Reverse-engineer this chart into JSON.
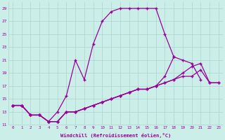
{
  "xlabel": "Windchill (Refroidissement éolien,°C)",
  "background_color": "#cceee8",
  "line_color": "#990099",
  "grid_color": "#aad4cc",
  "xlim": [
    -0.5,
    23.5
  ],
  "ylim": [
    11,
    30
  ],
  "xticks": [
    0,
    1,
    2,
    3,
    4,
    5,
    6,
    7,
    8,
    9,
    10,
    11,
    12,
    13,
    14,
    15,
    16,
    17,
    18,
    19,
    20,
    21,
    22,
    23
  ],
  "yticks": [
    11,
    13,
    15,
    17,
    19,
    21,
    23,
    25,
    27,
    29
  ],
  "series": [
    {
      "x": [
        0,
        1,
        2,
        3,
        4,
        5,
        6,
        7,
        8,
        9,
        10,
        11,
        12,
        13,
        14,
        15,
        16,
        17,
        18
      ],
      "y": [
        14,
        14,
        12.5,
        12.5,
        11.5,
        13,
        15.5,
        21,
        18,
        23.5,
        27,
        28.5,
        29,
        29,
        29,
        29,
        29,
        25,
        21.5
      ]
    },
    {
      "x": [
        0,
        1,
        2,
        3,
        4,
        5,
        6,
        7,
        8,
        9,
        10,
        11,
        12,
        13,
        14,
        15,
        16,
        17,
        18,
        19,
        20,
        21,
        22,
        23
      ],
      "y": [
        14,
        14,
        12.5,
        12.5,
        11.5,
        11.5,
        13,
        13,
        13.5,
        14,
        14.5,
        15,
        15.5,
        16,
        16.5,
        16.5,
        17,
        17.5,
        18,
        18.5,
        18.5,
        19.5,
        17.5,
        17.5
      ]
    },
    {
      "x": [
        0,
        1,
        2,
        3,
        4,
        5,
        6,
        7,
        8,
        9,
        10,
        11,
        12,
        13,
        14,
        15,
        16,
        17,
        18,
        19,
        20,
        21,
        22,
        23
      ],
      "y": [
        14,
        14,
        12.5,
        12.5,
        11.5,
        11.5,
        13,
        13,
        13.5,
        14,
        14.5,
        15,
        15.5,
        16,
        16.5,
        16.5,
        17,
        17.5,
        18,
        19,
        20,
        20.5,
        17.5,
        17.5
      ]
    },
    {
      "x": [
        0,
        1,
        2,
        3,
        4,
        5,
        6,
        7,
        8,
        9,
        10,
        11,
        12,
        13,
        14,
        15,
        16,
        17,
        18,
        19,
        20,
        21
      ],
      "y": [
        14,
        14,
        12.5,
        12.5,
        11.5,
        11.5,
        13,
        13,
        13.5,
        14,
        14.5,
        15,
        15.5,
        16,
        16.5,
        16.5,
        17,
        18.5,
        21.5,
        21,
        20.5,
        18
      ]
    }
  ]
}
